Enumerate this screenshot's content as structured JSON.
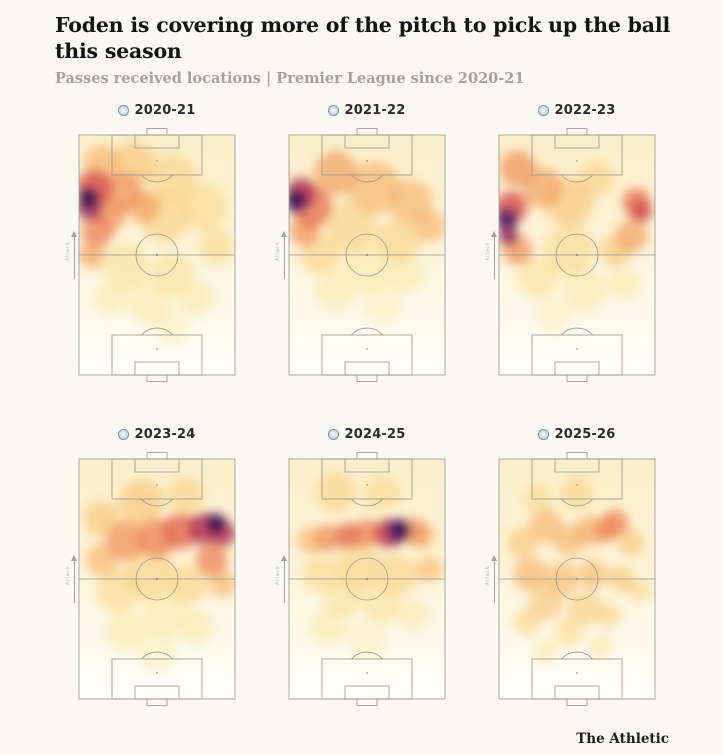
{
  "header": {
    "title": "Foden is covering more of the pitch to pick up the ball this season",
    "subtitle": "Passes received locations | Premier League since 2020-21"
  },
  "footer": {
    "attribution": "The Athletic"
  },
  "chart_data": {
    "type": "heatmap",
    "title": "Foden is covering more of the pitch to pick up the ball this season",
    "subtitle": "Passes received locations | Premier League since 2020-21",
    "grid": {
      "rows": 2,
      "cols": 3
    },
    "badge_icon": "manchester-city-badge",
    "direction_label": "Attack",
    "pitch": {
      "orientation": "vertical, attacking toward top",
      "line_color": "#97958e",
      "base_gradient": [
        "#fbeec9",
        "#fdf3d8",
        "#fdf9ea",
        "#fffef9"
      ]
    },
    "hotspot_format": "[x, y, r, i]",
    "hotspot_units": "x,y = percent of pitch from top-left corner (attack = up); r = blob radius in pitch units (pitch width 156); i = relative pass-received density 0-1",
    "palette": [
      {
        "v": 0.15,
        "c": "#fdf0c2"
      },
      {
        "v": 0.2,
        "c": "#fce9ac"
      },
      {
        "v": 0.25,
        "c": "#fbe09a"
      },
      {
        "v": 0.28,
        "c": "#fbda90"
      },
      {
        "v": 0.3,
        "c": "#fad489"
      },
      {
        "v": 0.32,
        "c": "#f9cf82"
      },
      {
        "v": 0.35,
        "c": "#f8c67a"
      },
      {
        "v": 0.38,
        "c": "#f7bd72"
      },
      {
        "v": 0.4,
        "c": "#f6b56c"
      },
      {
        "v": 0.42,
        "c": "#f5ad66"
      },
      {
        "v": 0.45,
        "c": "#f3a160"
      },
      {
        "v": 0.5,
        "c": "#f0925a"
      },
      {
        "v": 0.55,
        "c": "#ec8054"
      },
      {
        "v": 0.6,
        "c": "#e66e4f"
      },
      {
        "v": 0.62,
        "c": "#e3674d"
      },
      {
        "v": 0.65,
        "c": "#de5c4b"
      },
      {
        "v": 0.7,
        "c": "#d54c4a"
      },
      {
        "v": 0.72,
        "c": "#d04549"
      },
      {
        "v": 0.75,
        "c": "#c63d4f"
      },
      {
        "v": 0.8,
        "c": "#b13255"
      },
      {
        "v": 0.85,
        "c": "#93285b"
      },
      {
        "v": 0.9,
        "c": "#711f60"
      },
      {
        "v": 0.95,
        "c": "#4e1766"
      },
      {
        "v": 1.0,
        "c": "#331253"
      }
    ],
    "panels": [
      {
        "label": "2020-21",
        "hotspots": [
          [
            35,
            12,
            22,
            0.35
          ],
          [
            60,
            18,
            24,
            0.3
          ],
          [
            15,
            12,
            18,
            0.4
          ],
          [
            80,
            30,
            24,
            0.28
          ],
          [
            88,
            46,
            18,
            0.28
          ],
          [
            55,
            34,
            26,
            0.3
          ],
          [
            30,
            55,
            24,
            0.26
          ],
          [
            60,
            58,
            22,
            0.24
          ],
          [
            45,
            70,
            22,
            0.2
          ],
          [
            75,
            68,
            18,
            0.22
          ],
          [
            20,
            68,
            16,
            0.2
          ],
          [
            60,
            80,
            18,
            0.15
          ],
          [
            28,
            24,
            20,
            0.5
          ],
          [
            42,
            30,
            16,
            0.45
          ],
          [
            20,
            33,
            16,
            0.5
          ],
          [
            12,
            40,
            16,
            0.55
          ],
          [
            8,
            50,
            13,
            0.45
          ],
          [
            10,
            22,
            18,
            0.7
          ],
          [
            7,
            30,
            13,
            0.85
          ],
          [
            6,
            26,
            10,
            1.0
          ]
        ]
      },
      {
        "label": "2021-22",
        "hotspots": [
          [
            30,
            16,
            22,
            0.45
          ],
          [
            55,
            22,
            26,
            0.4
          ],
          [
            78,
            28,
            22,
            0.4
          ],
          [
            90,
            38,
            16,
            0.4
          ],
          [
            40,
            38,
            26,
            0.3
          ],
          [
            70,
            44,
            22,
            0.3
          ],
          [
            20,
            50,
            20,
            0.3
          ],
          [
            50,
            55,
            26,
            0.22
          ],
          [
            75,
            58,
            18,
            0.22
          ],
          [
            30,
            65,
            20,
            0.18
          ],
          [
            60,
            70,
            20,
            0.15
          ],
          [
            15,
            30,
            20,
            0.6
          ],
          [
            10,
            40,
            15,
            0.5
          ],
          [
            8,
            24,
            15,
            0.8
          ],
          [
            5,
            28,
            11,
            0.95
          ],
          [
            4,
            26,
            8,
            1.0
          ]
        ]
      },
      {
        "label": "2022-23",
        "hotspots": [
          [
            12,
            14,
            18,
            0.5
          ],
          [
            28,
            22,
            20,
            0.45
          ],
          [
            45,
            28,
            24,
            0.35
          ],
          [
            62,
            18,
            18,
            0.3
          ],
          [
            85,
            42,
            16,
            0.45
          ],
          [
            75,
            48,
            16,
            0.35
          ],
          [
            45,
            48,
            26,
            0.28
          ],
          [
            25,
            60,
            20,
            0.25
          ],
          [
            55,
            65,
            22,
            0.2
          ],
          [
            80,
            62,
            16,
            0.22
          ],
          [
            35,
            75,
            18,
            0.16
          ],
          [
            12,
            48,
            15,
            0.5
          ],
          [
            8,
            30,
            16,
            0.7
          ],
          [
            88,
            28,
            14,
            0.6
          ],
          [
            91,
            32,
            11,
            0.72
          ],
          [
            5,
            35,
            11,
            0.95
          ],
          [
            6,
            42,
            10,
            0.85
          ]
        ]
      },
      {
        "label": "2023-24",
        "hotspots": [
          [
            40,
            18,
            22,
            0.35
          ],
          [
            68,
            15,
            18,
            0.3
          ],
          [
            15,
            25,
            18,
            0.35
          ],
          [
            15,
            42,
            16,
            0.4
          ],
          [
            92,
            52,
            13,
            0.4
          ],
          [
            45,
            48,
            26,
            0.3
          ],
          [
            70,
            52,
            20,
            0.3
          ],
          [
            25,
            55,
            22,
            0.28
          ],
          [
            55,
            65,
            24,
            0.22
          ],
          [
            30,
            72,
            20,
            0.18
          ],
          [
            75,
            70,
            18,
            0.2
          ],
          [
            50,
            80,
            20,
            0.15
          ],
          [
            30,
            34,
            20,
            0.5
          ],
          [
            50,
            33,
            20,
            0.55
          ],
          [
            65,
            30,
            18,
            0.62
          ],
          [
            85,
            42,
            16,
            0.55
          ],
          [
            80,
            29,
            16,
            0.8
          ],
          [
            92,
            31,
            13,
            0.8
          ],
          [
            88,
            27,
            10,
            1.0
          ]
        ]
      },
      {
        "label": "2024-25",
        "hotspots": [
          [
            30,
            14,
            20,
            0.3
          ],
          [
            60,
            14,
            18,
            0.28
          ],
          [
            14,
            34,
            13,
            0.4
          ],
          [
            85,
            32,
            13,
            0.42
          ],
          [
            90,
            46,
            13,
            0.38
          ],
          [
            45,
            45,
            24,
            0.3
          ],
          [
            70,
            48,
            20,
            0.3
          ],
          [
            20,
            48,
            18,
            0.28
          ],
          [
            35,
            58,
            20,
            0.25
          ],
          [
            60,
            60,
            20,
            0.25
          ],
          [
            80,
            65,
            16,
            0.2
          ],
          [
            25,
            70,
            18,
            0.2
          ],
          [
            50,
            75,
            20,
            0.16
          ],
          [
            25,
            33,
            14,
            0.5
          ],
          [
            38,
            32,
            13,
            0.62
          ],
          [
            50,
            31,
            14,
            0.55
          ],
          [
            80,
            30,
            13,
            0.5
          ],
          [
            64,
            31,
            15,
            0.75
          ],
          [
            70,
            30,
            12,
            0.95
          ],
          [
            73,
            29,
            8,
            1.0
          ]
        ]
      },
      {
        "label": "2025-26",
        "hotspots": [
          [
            50,
            14,
            16,
            0.3
          ],
          [
            25,
            16,
            14,
            0.28
          ],
          [
            74,
            27,
            14,
            0.55
          ],
          [
            68,
            30,
            12,
            0.5
          ],
          [
            58,
            30,
            15,
            0.42
          ],
          [
            30,
            28,
            17,
            0.4
          ],
          [
            45,
            34,
            15,
            0.4
          ],
          [
            15,
            35,
            15,
            0.35
          ],
          [
            85,
            35,
            13,
            0.35
          ],
          [
            20,
            48,
            17,
            0.4
          ],
          [
            40,
            50,
            17,
            0.38
          ],
          [
            60,
            48,
            15,
            0.38
          ],
          [
            78,
            50,
            13,
            0.35
          ],
          [
            90,
            55,
            11,
            0.3
          ],
          [
            30,
            60,
            17,
            0.35
          ],
          [
            55,
            62,
            17,
            0.32
          ],
          [
            70,
            65,
            13,
            0.3
          ],
          [
            18,
            68,
            13,
            0.3
          ],
          [
            45,
            72,
            15,
            0.28
          ],
          [
            65,
            78,
            13,
            0.22
          ],
          [
            30,
            80,
            13,
            0.2
          ]
        ]
      }
    ]
  }
}
